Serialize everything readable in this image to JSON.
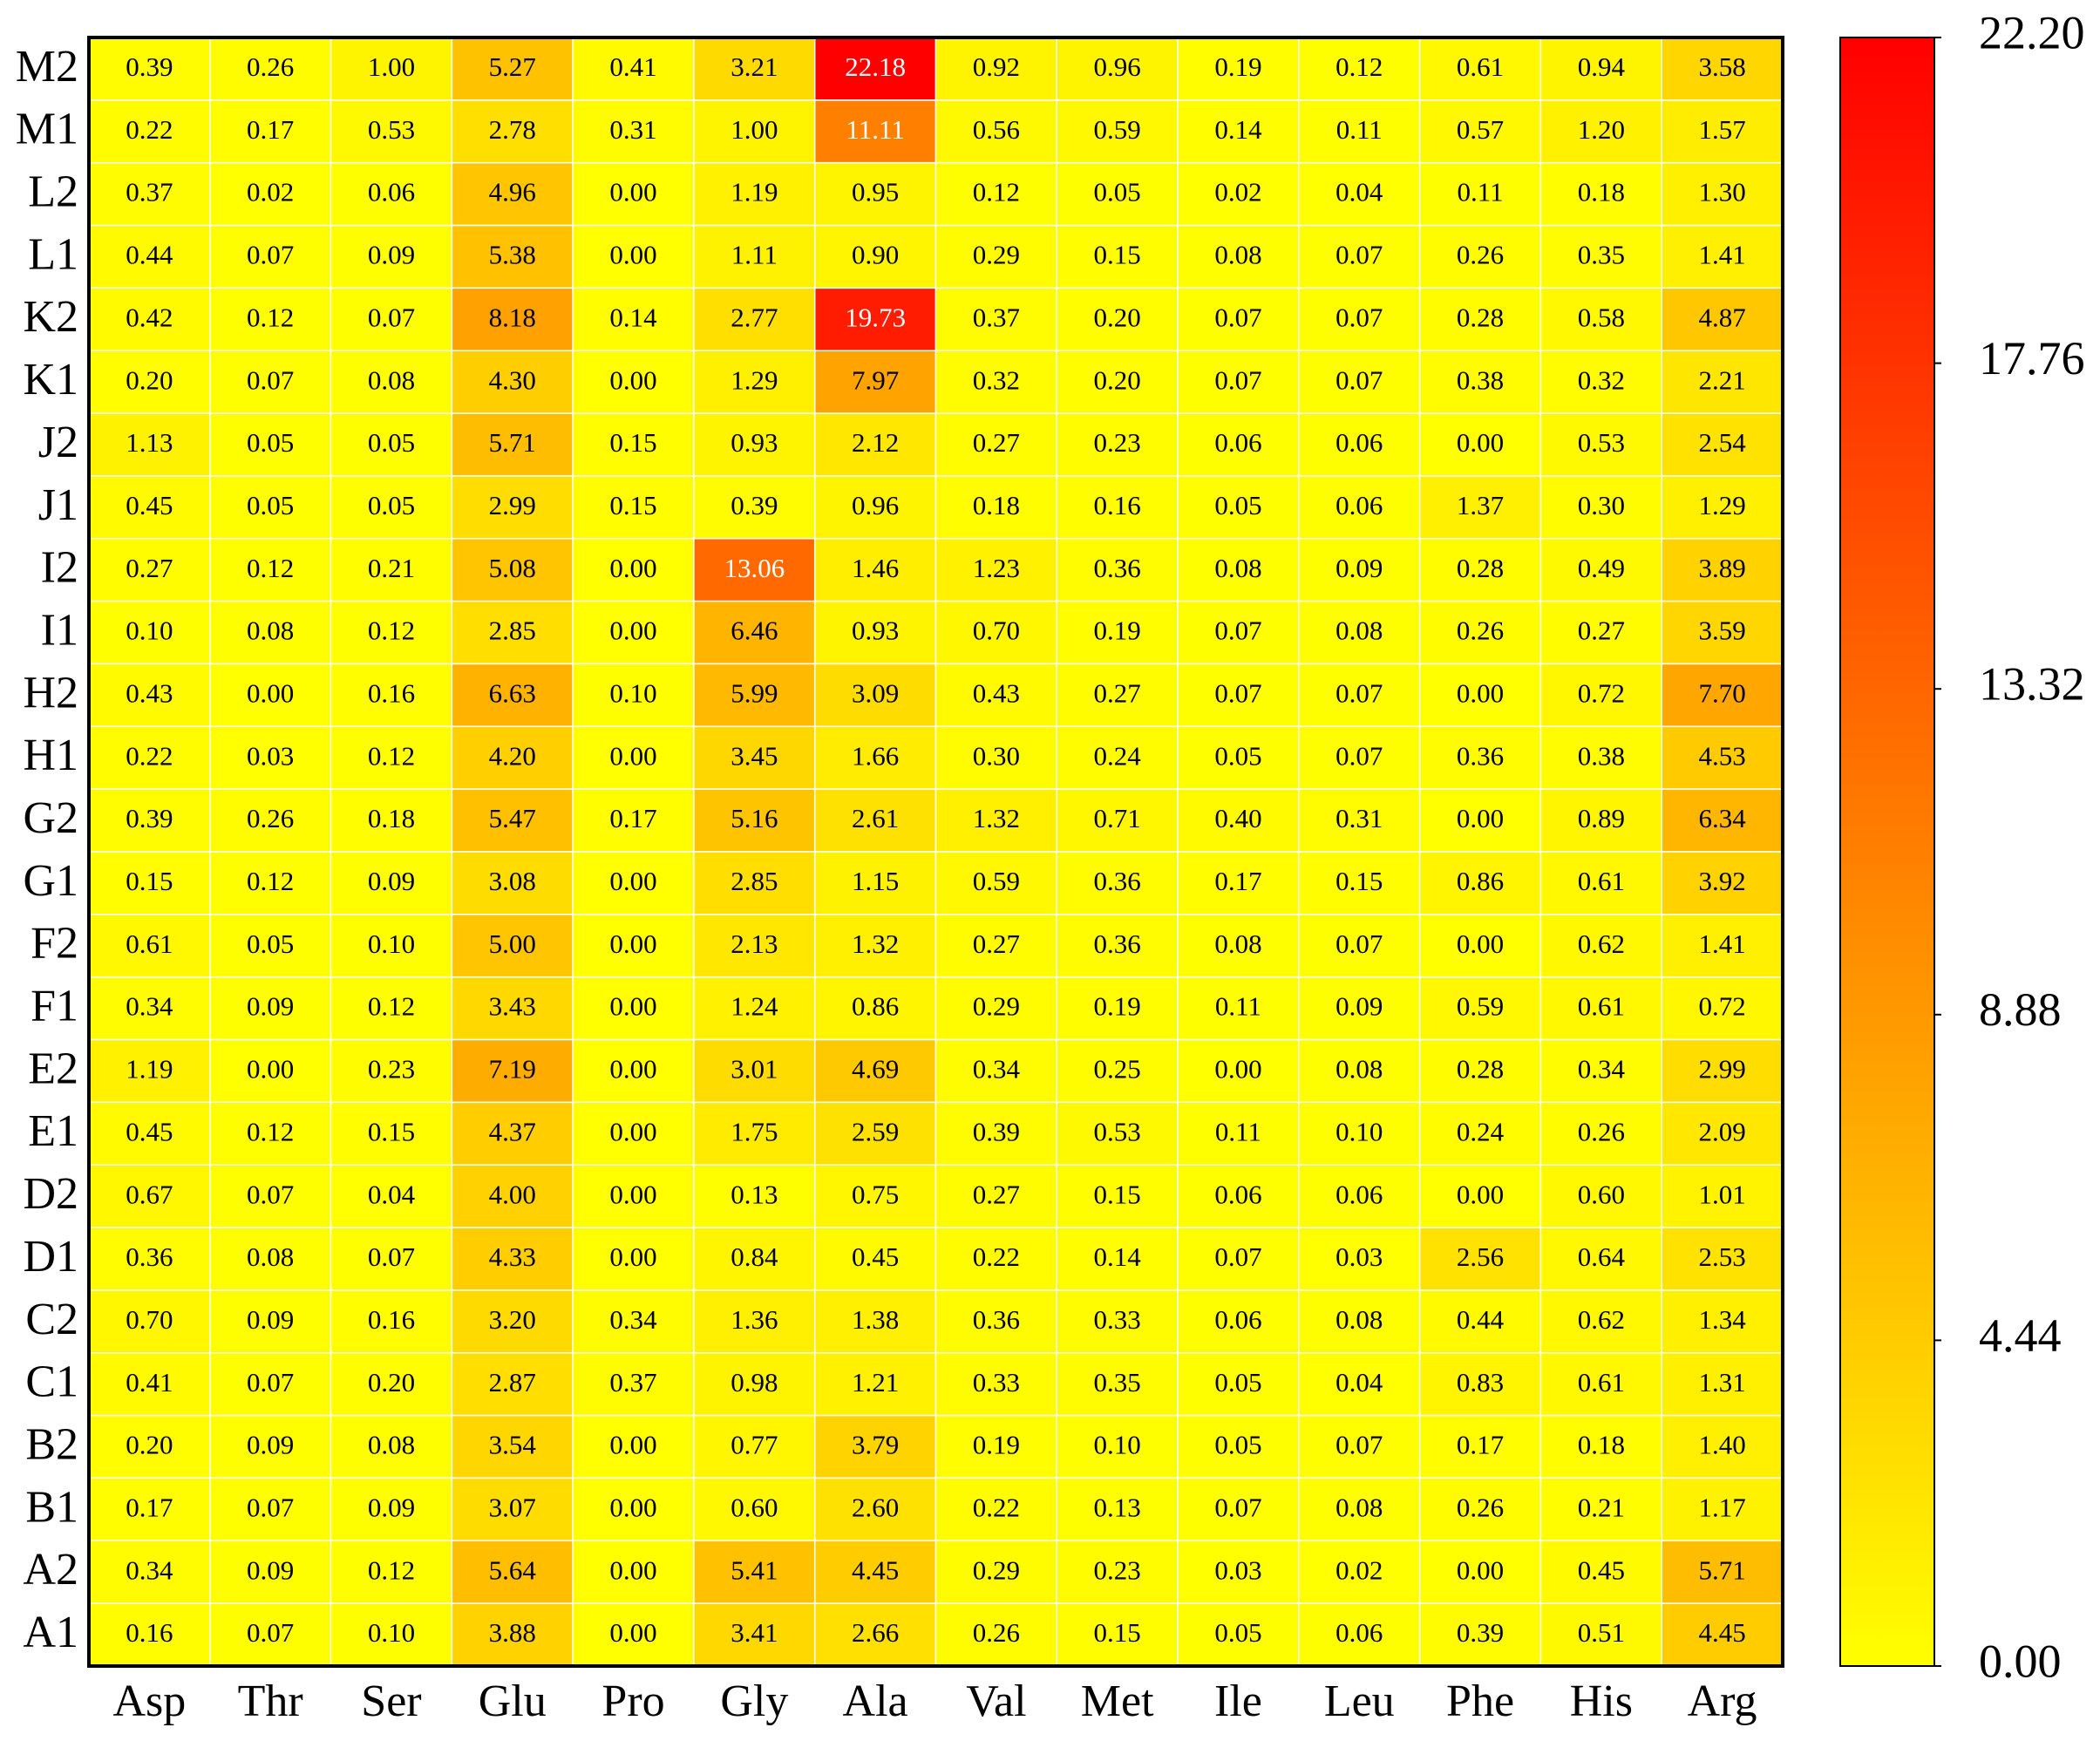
{
  "chart_data": {
    "type": "heatmap",
    "x": [
      "Asp",
      "Thr",
      "Ser",
      "Glu",
      "Pro",
      "Gly",
      "Ala",
      "Val",
      "Met",
      "Ile",
      "Leu",
      "Phe",
      "His",
      "Arg"
    ],
    "y": [
      "M2",
      "M1",
      "L2",
      "L1",
      "K2",
      "K1",
      "J2",
      "J1",
      "I2",
      "I1",
      "H2",
      "H1",
      "G2",
      "G1",
      "F2",
      "F1",
      "E2",
      "E1",
      "D2",
      "D1",
      "C2",
      "C1",
      "B2",
      "B1",
      "A2",
      "A1"
    ],
    "values": [
      [
        0.39,
        0.26,
        1.0,
        5.27,
        0.41,
        3.21,
        22.18,
        0.92,
        0.96,
        0.19,
        0.12,
        0.61,
        0.94,
        3.58
      ],
      [
        0.22,
        0.17,
        0.53,
        2.78,
        0.31,
        1.0,
        11.11,
        0.56,
        0.59,
        0.14,
        0.11,
        0.57,
        1.2,
        1.57
      ],
      [
        0.37,
        0.02,
        0.06,
        4.96,
        0.0,
        1.19,
        0.95,
        0.12,
        0.05,
        0.02,
        0.04,
        0.11,
        0.18,
        1.3
      ],
      [
        0.44,
        0.07,
        0.09,
        5.38,
        0.0,
        1.11,
        0.9,
        0.29,
        0.15,
        0.08,
        0.07,
        0.26,
        0.35,
        1.41
      ],
      [
        0.42,
        0.12,
        0.07,
        8.18,
        0.14,
        2.77,
        19.73,
        0.37,
        0.2,
        0.07,
        0.07,
        0.28,
        0.58,
        4.87
      ],
      [
        0.2,
        0.07,
        0.08,
        4.3,
        0.0,
        1.29,
        7.97,
        0.32,
        0.2,
        0.07,
        0.07,
        0.38,
        0.32,
        2.21
      ],
      [
        1.13,
        0.05,
        0.05,
        5.71,
        0.15,
        0.93,
        2.12,
        0.27,
        0.23,
        0.06,
        0.06,
        0.0,
        0.53,
        2.54
      ],
      [
        0.45,
        0.05,
        0.05,
        2.99,
        0.15,
        0.39,
        0.96,
        0.18,
        0.16,
        0.05,
        0.06,
        1.37,
        0.3,
        1.29
      ],
      [
        0.27,
        0.12,
        0.21,
        5.08,
        0.0,
        13.06,
        1.46,
        1.23,
        0.36,
        0.08,
        0.09,
        0.28,
        0.49,
        3.89
      ],
      [
        0.1,
        0.08,
        0.12,
        2.85,
        0.0,
        6.46,
        0.93,
        0.7,
        0.19,
        0.07,
        0.08,
        0.26,
        0.27,
        3.59
      ],
      [
        0.43,
        0.0,
        0.16,
        6.63,
        0.1,
        5.99,
        3.09,
        0.43,
        0.27,
        0.07,
        0.07,
        0.0,
        0.72,
        7.7
      ],
      [
        0.22,
        0.03,
        0.12,
        4.2,
        0.0,
        3.45,
        1.66,
        0.3,
        0.24,
        0.05,
        0.07,
        0.36,
        0.38,
        4.53
      ],
      [
        0.39,
        0.26,
        0.18,
        5.47,
        0.17,
        5.16,
        2.61,
        1.32,
        0.71,
        0.4,
        0.31,
        0.0,
        0.89,
        6.34
      ],
      [
        0.15,
        0.12,
        0.09,
        3.08,
        0.0,
        2.85,
        1.15,
        0.59,
        0.36,
        0.17,
        0.15,
        0.86,
        0.61,
        3.92
      ],
      [
        0.61,
        0.05,
        0.1,
        5.0,
        0.0,
        2.13,
        1.32,
        0.27,
        0.36,
        0.08,
        0.07,
        0.0,
        0.62,
        1.41
      ],
      [
        0.34,
        0.09,
        0.12,
        3.43,
        0.0,
        1.24,
        0.86,
        0.29,
        0.19,
        0.11,
        0.09,
        0.59,
        0.61,
        0.72
      ],
      [
        1.19,
        0.0,
        0.23,
        7.19,
        0.0,
        3.01,
        4.69,
        0.34,
        0.25,
        0.0,
        0.08,
        0.28,
        0.34,
        2.99
      ],
      [
        0.45,
        0.12,
        0.15,
        4.37,
        0.0,
        1.75,
        2.59,
        0.39,
        0.53,
        0.11,
        0.1,
        0.24,
        0.26,
        2.09
      ],
      [
        0.67,
        0.07,
        0.04,
        4.0,
        0.0,
        0.13,
        0.75,
        0.27,
        0.15,
        0.06,
        0.06,
        0.0,
        0.6,
        1.01
      ],
      [
        0.36,
        0.08,
        0.07,
        4.33,
        0.0,
        0.84,
        0.45,
        0.22,
        0.14,
        0.07,
        0.03,
        2.56,
        0.64,
        2.53
      ],
      [
        0.7,
        0.09,
        0.16,
        3.2,
        0.34,
        1.36,
        1.38,
        0.36,
        0.33,
        0.06,
        0.08,
        0.44,
        0.62,
        1.34
      ],
      [
        0.41,
        0.07,
        0.2,
        2.87,
        0.37,
        0.98,
        1.21,
        0.33,
        0.35,
        0.05,
        0.04,
        0.83,
        0.61,
        1.31
      ],
      [
        0.2,
        0.09,
        0.08,
        3.54,
        0.0,
        0.77,
        3.79,
        0.19,
        0.1,
        0.05,
        0.07,
        0.17,
        0.18,
        1.4
      ],
      [
        0.17,
        0.07,
        0.09,
        3.07,
        0.0,
        0.6,
        2.6,
        0.22,
        0.13,
        0.07,
        0.08,
        0.26,
        0.21,
        1.17
      ],
      [
        0.34,
        0.09,
        0.12,
        5.64,
        0.0,
        5.41,
        4.45,
        0.29,
        0.23,
        0.03,
        0.02,
        0.0,
        0.45,
        5.71
      ],
      [
        0.16,
        0.07,
        0.1,
        3.88,
        0.0,
        3.41,
        2.66,
        0.26,
        0.15,
        0.05,
        0.06,
        0.39,
        0.51,
        4.45
      ]
    ],
    "value_labels": [
      [
        "0.39",
        "0.26",
        "1.00",
        "5.27",
        "0.41",
        "3.21",
        "22.18",
        "0.92",
        "0.96",
        "0.19",
        "0.12",
        "0.61",
        "0.94",
        "3.58"
      ],
      [
        "0.22",
        "0.17",
        "0.53",
        "2.78",
        "0.31",
        "1.00",
        "11.11",
        "0.56",
        "0.59",
        "0.14",
        "0.11",
        "0.57",
        "1.20",
        "1.57"
      ],
      [
        "0.37",
        "0.02",
        "0.06",
        "4.96",
        "0.00",
        "1.19",
        "0.95",
        "0.12",
        "0.05",
        "0.02",
        "0.04",
        "0.11",
        "0.18",
        "1.30"
      ],
      [
        "0.44",
        "0.07",
        "0.09",
        "5.38",
        "0.00",
        "1.11",
        "0.90",
        "0.29",
        "0.15",
        "0.08",
        "0.07",
        "0.26",
        "0.35",
        "1.41"
      ],
      [
        "0.42",
        "0.12",
        "0.07",
        "8.18",
        "0.14",
        "2.77",
        "19.73",
        "0.37",
        "0.20",
        "0.07",
        "0.07",
        "0.28",
        "0.58",
        "4.87"
      ],
      [
        "0.20",
        "0.07",
        "0.08",
        "4.30",
        "0.00",
        "1.29",
        "7.97",
        "0.32",
        "0.20",
        "0.07",
        "0.07",
        "0.38",
        "0.32",
        "2.21"
      ],
      [
        "1.13",
        "0.05",
        "0.05",
        "5.71",
        "0.15",
        "0.93",
        "2.12",
        "0.27",
        "0.23",
        "0.06",
        "0.06",
        "0.00",
        "0.53",
        "2.54"
      ],
      [
        "0.45",
        "0.05",
        "0.05",
        "2.99",
        "0.15",
        "0.39",
        "0.96",
        "0.18",
        "0.16",
        "0.05",
        "0.06",
        "1.37",
        "0.30",
        "1.29"
      ],
      [
        "0.27",
        "0.12",
        "0.21",
        "5.08",
        "0.00",
        "13.06",
        "1.46",
        "1.23",
        "0.36",
        "0.08",
        "0.09",
        "0.28",
        "0.49",
        "3.89"
      ],
      [
        "0.10",
        "0.08",
        "0.12",
        "2.85",
        "0.00",
        "6.46",
        "0.93",
        "0.70",
        "0.19",
        "0.07",
        "0.08",
        "0.26",
        "0.27",
        "3.59"
      ],
      [
        "0.43",
        "0.00",
        "0.16",
        "6.63",
        "0.10",
        "5.99",
        "3.09",
        "0.43",
        "0.27",
        "0.07",
        "0.07",
        "0.00",
        "0.72",
        "7.70"
      ],
      [
        "0.22",
        "0.03",
        "0.12",
        "4.20",
        "0.00",
        "3.45",
        "1.66",
        "0.30",
        "0.24",
        "0.05",
        "0.07",
        "0.36",
        "0.38",
        "4.53"
      ],
      [
        "0.39",
        "0.26",
        "0.18",
        "5.47",
        "0.17",
        "5.16",
        "2.61",
        "1.32",
        "0.71",
        "0.40",
        "0.31",
        "0.00",
        "0.89",
        "6.34"
      ],
      [
        "0.15",
        "0.12",
        "0.09",
        "3.08",
        "0.00",
        "2.85",
        "1.15",
        "0.59",
        "0.36",
        "0.17",
        "0.15",
        "0.86",
        "0.61",
        "3.92"
      ],
      [
        "0.61",
        "0.05",
        "0.10",
        "5.00",
        "0.00",
        "2.13",
        "1.32",
        "0.27",
        "0.36",
        "0.08",
        "0.07",
        "0.00",
        "0.62",
        "1.41"
      ],
      [
        "0.34",
        "0.09",
        "0.12",
        "3.43",
        "0.00",
        "1.24",
        "0.86",
        "0.29",
        "0.19",
        "0.11",
        "0.09",
        "0.59",
        "0.61",
        "0.72"
      ],
      [
        "1.19",
        "0.00",
        "0.23",
        "7.19",
        "0.00",
        "3.01",
        "4.69",
        "0.34",
        "0.25",
        "0.00",
        "0.08",
        "0.28",
        "0.34",
        "2.99"
      ],
      [
        "0.45",
        "0.12",
        "0.15",
        "4.37",
        "0.00",
        "1.75",
        "2.59",
        "0.39",
        "0.53",
        "0.11",
        "0.10",
        "0.24",
        "0.26",
        "2.09"
      ],
      [
        "0.67",
        "0.07",
        "0.04",
        "4.00",
        "0.00",
        "0.13",
        "0.75",
        "0.27",
        "0.15",
        "0.06",
        "0.06",
        "0.00",
        "0.60",
        "1.01"
      ],
      [
        "0.36",
        "0.08",
        "0.07",
        "4.33",
        "0.00",
        "0.84",
        "0.45",
        "0.22",
        "0.14",
        "0.07",
        "0.03",
        "2.56",
        "0.64",
        "2.53"
      ],
      [
        "0.70",
        "0.09",
        "0.16",
        "3.20",
        "0.34",
        "1.36",
        "1.38",
        "0.36",
        "0.33",
        "0.06",
        "0.08",
        "0.44",
        "0.62",
        "1.34"
      ],
      [
        "0.41",
        "0.07",
        "0.20",
        "2.87",
        "0.37",
        "0.98",
        "1.21",
        "0.33",
        "0.35",
        "0.05",
        "0.04",
        "0.83",
        "0.61",
        "1.31"
      ],
      [
        "0.20",
        "0.09",
        "0.08",
        "3.54",
        "0.00",
        "0.77",
        "3.79",
        "0.19",
        "0.10",
        "0.05",
        "0.07",
        "0.17",
        "0.18",
        "1.40"
      ],
      [
        "0.17",
        "0.07",
        "0.09",
        "3.07",
        "0.00",
        "0.60",
        "2.60",
        "0.22",
        "0.13",
        "0.07",
        "0.08",
        "0.26",
        "0.21",
        "1.17"
      ],
      [
        "0.34",
        "0.09",
        "0.12",
        "5.64",
        "0.00",
        "5.41",
        "4.45",
        "0.29",
        "0.23",
        "0.03",
        "0.02",
        "0.00",
        "0.45",
        "5.71"
      ],
      [
        "0.16",
        "0.07",
        "0.10",
        "3.88",
        "0.00",
        "3.41",
        "2.66",
        "0.26",
        "0.15",
        "0.05",
        "0.06",
        "0.39",
        "0.51",
        "4.45"
      ]
    ],
    "colorscale": [
      "#ffff00",
      "#ff0000"
    ],
    "clim": [
      0,
      22.2
    ],
    "cticks": [
      {
        "value": 0,
        "label": "0.00"
      },
      4.44,
      8.88,
      13.32,
      17.76,
      {
        "value": 22.2,
        "label": "22.20"
      }
    ]
  }
}
